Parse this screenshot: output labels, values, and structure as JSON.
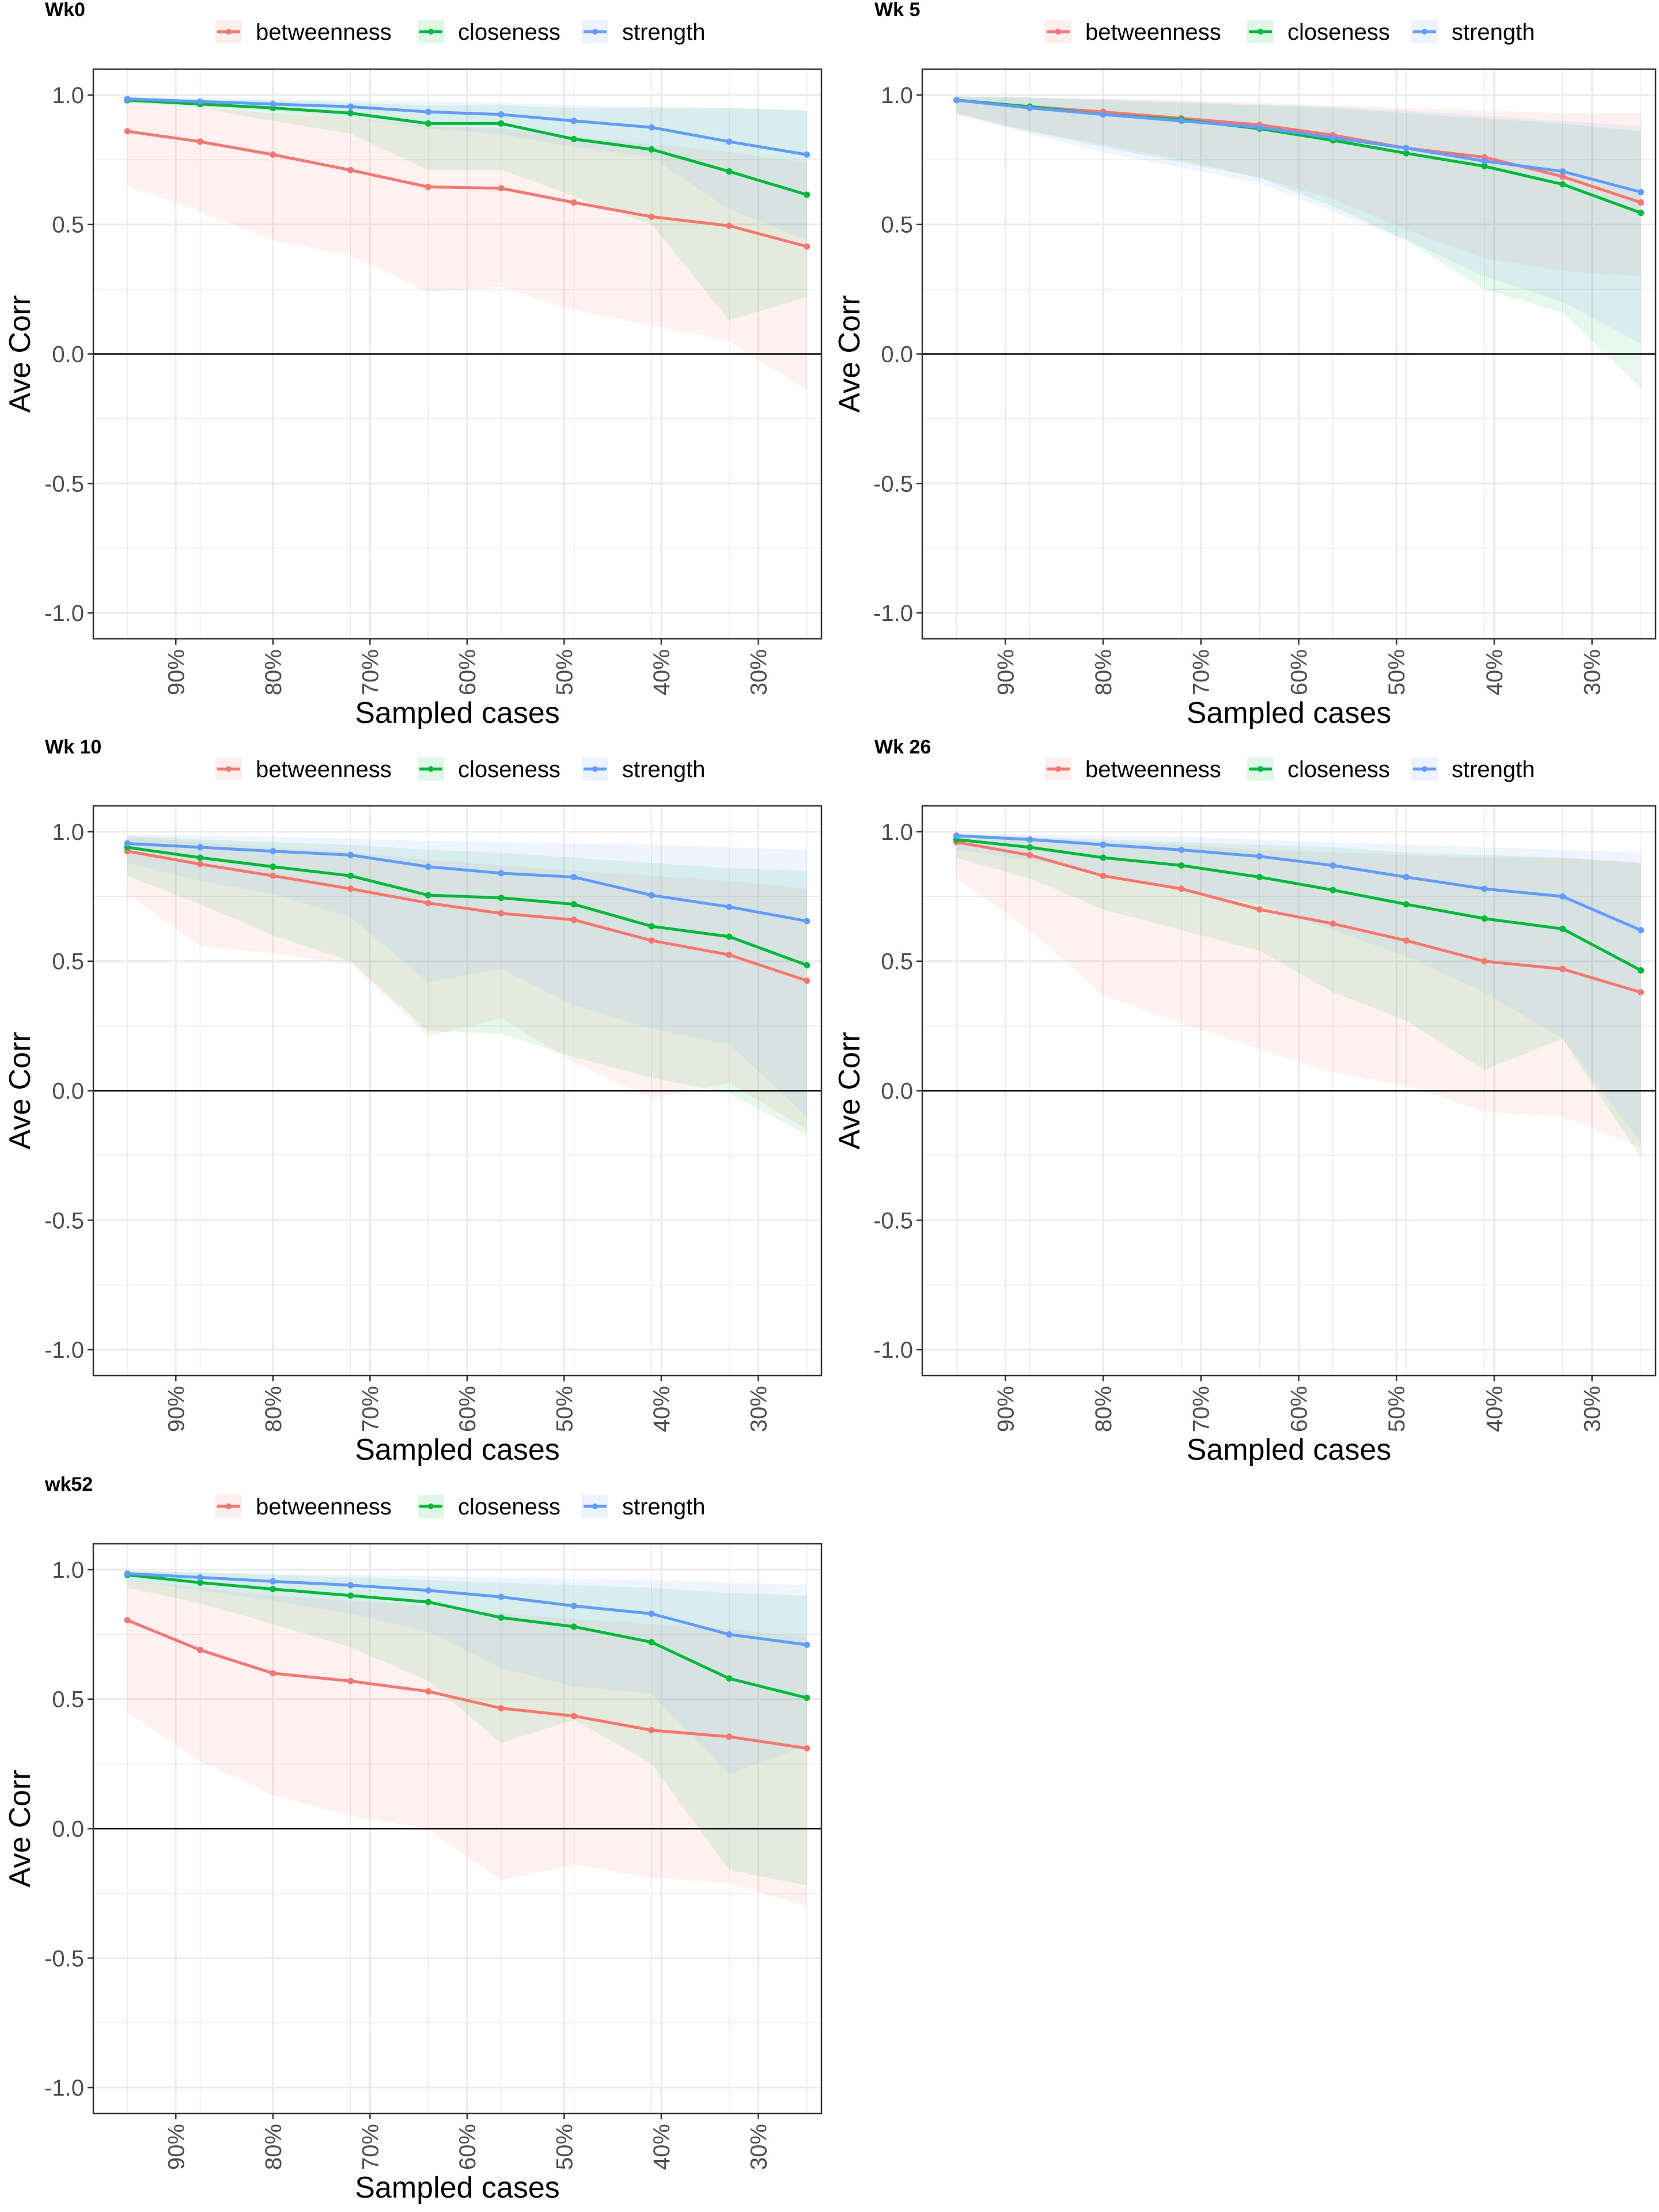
{
  "colors": {
    "betweenness": "#F8766D",
    "closeness": "#00BA38",
    "strength": "#619CFF",
    "grid": "#EBEBEB",
    "panel_border": "#333333",
    "text": "#000000",
    "tick_text": "#4D4D4D"
  },
  "chart_data": [
    {
      "type": "line",
      "title": "Wk0",
      "xlabel": "Sampled cases",
      "ylabel": "Ave Corr",
      "ylim": [
        -1.1,
        1.1
      ],
      "yticks": [
        "1.0",
        "0.5",
        "0.0",
        "-0.5",
        "-1.0"
      ],
      "ytick_values": [
        1.0,
        0.5,
        0.0,
        -0.5,
        -1.0
      ],
      "xticks": [
        "90%",
        "80%",
        "70%",
        "60%",
        "50%",
        "40%",
        "30%"
      ],
      "xtick_values": [
        0.9,
        0.8,
        0.7,
        0.6,
        0.5,
        0.4,
        0.3
      ],
      "xlim": [
        0.985,
        0.235
      ],
      "x": [
        0.95,
        0.875,
        0.8,
        0.72,
        0.64,
        0.565,
        0.49,
        0.41,
        0.33,
        0.25
      ],
      "legend": "top",
      "grid": true,
      "series": [
        {
          "name": "betweenness",
          "values": [
            0.86,
            0.82,
            0.77,
            0.71,
            0.645,
            0.64,
            0.585,
            0.53,
            0.495,
            0.415
          ],
          "lower": [
            0.65,
            0.55,
            0.44,
            0.38,
            0.24,
            0.26,
            0.17,
            0.11,
            0.05,
            -0.14
          ],
          "upper": [
            0.97,
            0.95,
            0.93,
            0.91,
            0.88,
            0.87,
            0.84,
            0.81,
            0.78,
            0.74
          ]
        },
        {
          "name": "closeness",
          "values": [
            0.98,
            0.965,
            0.95,
            0.93,
            0.89,
            0.89,
            0.83,
            0.79,
            0.705,
            0.615
          ],
          "lower": [
            0.97,
            0.95,
            0.9,
            0.85,
            0.71,
            0.71,
            0.61,
            0.5,
            0.13,
            0.22
          ],
          "upper": [
            0.99,
            0.98,
            0.98,
            0.97,
            0.96,
            0.96,
            0.95,
            0.95,
            0.95,
            0.94
          ]
        },
        {
          "name": "strength",
          "values": [
            0.985,
            0.975,
            0.965,
            0.955,
            0.935,
            0.925,
            0.9,
            0.875,
            0.82,
            0.77
          ],
          "lower": [
            0.97,
            0.96,
            0.94,
            0.91,
            0.87,
            0.85,
            0.8,
            0.76,
            0.56,
            0.44
          ],
          "upper": [
            0.995,
            0.99,
            0.985,
            0.98,
            0.975,
            0.97,
            0.96,
            0.955,
            0.95,
            0.94
          ]
        }
      ]
    },
    {
      "type": "line",
      "title": "Wk 5",
      "xlabel": "Sampled cases",
      "ylabel": "Ave Corr",
      "ylim": [
        -1.1,
        1.1
      ],
      "yticks": [
        "1.0",
        "0.5",
        "0.0",
        "-0.5",
        "-1.0"
      ],
      "ytick_values": [
        1.0,
        0.5,
        0.0,
        -0.5,
        -1.0
      ],
      "xticks": [
        "90%",
        "80%",
        "70%",
        "60%",
        "50%",
        "40%",
        "30%"
      ],
      "xtick_values": [
        0.9,
        0.8,
        0.7,
        0.6,
        0.5,
        0.4,
        0.3
      ],
      "xlim": [
        0.985,
        0.235
      ],
      "x": [
        0.95,
        0.875,
        0.8,
        0.72,
        0.64,
        0.565,
        0.49,
        0.41,
        0.33,
        0.25
      ],
      "legend": "top",
      "grid": true,
      "series": [
        {
          "name": "betweenness",
          "values": [
            0.98,
            0.955,
            0.935,
            0.91,
            0.885,
            0.845,
            0.795,
            0.76,
            0.685,
            0.585
          ],
          "lower": [
            0.92,
            0.86,
            0.81,
            0.75,
            0.68,
            0.6,
            0.48,
            0.37,
            0.32,
            0.3
          ],
          "upper": [
            0.995,
            0.99,
            0.985,
            0.98,
            0.97,
            0.96,
            0.95,
            0.94,
            0.93,
            0.93
          ]
        },
        {
          "name": "closeness",
          "values": [
            0.98,
            0.955,
            0.925,
            0.905,
            0.87,
            0.825,
            0.775,
            0.725,
            0.655,
            0.545
          ],
          "lower": [
            0.93,
            0.86,
            0.8,
            0.74,
            0.68,
            0.57,
            0.44,
            0.25,
            0.16,
            -0.13
          ],
          "upper": [
            0.995,
            0.99,
            0.98,
            0.97,
            0.96,
            0.95,
            0.93,
            0.91,
            0.89,
            0.86
          ]
        },
        {
          "name": "strength",
          "values": [
            0.98,
            0.95,
            0.925,
            0.9,
            0.875,
            0.835,
            0.795,
            0.745,
            0.705,
            0.625
          ],
          "lower": [
            0.93,
            0.85,
            0.78,
            0.72,
            0.66,
            0.55,
            0.44,
            0.3,
            0.2,
            0.04
          ],
          "upper": [
            0.995,
            0.99,
            0.985,
            0.975,
            0.965,
            0.955,
            0.94,
            0.92,
            0.9,
            0.88
          ]
        }
      ]
    },
    {
      "type": "line",
      "title": "Wk 10",
      "xlabel": "Sampled cases",
      "ylabel": "Ave Corr",
      "ylim": [
        -1.1,
        1.1
      ],
      "yticks": [
        "1.0",
        "0.5",
        "0.0",
        "-0.5",
        "-1.0"
      ],
      "ytick_values": [
        1.0,
        0.5,
        0.0,
        -0.5,
        -1.0
      ],
      "xticks": [
        "90%",
        "80%",
        "70%",
        "60%",
        "50%",
        "40%",
        "30%"
      ],
      "xtick_values": [
        0.9,
        0.8,
        0.7,
        0.6,
        0.5,
        0.4,
        0.3
      ],
      "xlim": [
        0.985,
        0.235
      ],
      "x": [
        0.95,
        0.875,
        0.8,
        0.72,
        0.64,
        0.565,
        0.49,
        0.41,
        0.33,
        0.25
      ],
      "legend": "top",
      "grid": true,
      "series": [
        {
          "name": "betweenness",
          "values": [
            0.925,
            0.875,
            0.83,
            0.78,
            0.725,
            0.685,
            0.66,
            0.58,
            0.525,
            0.425
          ],
          "lower": [
            0.76,
            0.56,
            0.53,
            0.49,
            0.21,
            0.28,
            0.11,
            -0.03,
            0.03,
            -0.15
          ],
          "upper": [
            0.98,
            0.96,
            0.94,
            0.92,
            0.89,
            0.87,
            0.85,
            0.83,
            0.81,
            0.78
          ]
        },
        {
          "name": "closeness",
          "values": [
            0.94,
            0.9,
            0.865,
            0.83,
            0.755,
            0.745,
            0.72,
            0.635,
            0.595,
            0.485
          ],
          "lower": [
            0.83,
            0.72,
            0.6,
            0.5,
            0.23,
            0.22,
            0.13,
            0.05,
            -0.01,
            -0.17
          ],
          "upper": [
            0.985,
            0.97,
            0.96,
            0.95,
            0.93,
            0.92,
            0.9,
            0.88,
            0.86,
            0.85
          ]
        },
        {
          "name": "strength",
          "values": [
            0.955,
            0.94,
            0.925,
            0.91,
            0.865,
            0.84,
            0.825,
            0.755,
            0.71,
            0.655
          ],
          "lower": [
            0.88,
            0.81,
            0.76,
            0.67,
            0.42,
            0.47,
            0.33,
            0.24,
            0.18,
            -0.1
          ],
          "upper": [
            0.99,
            0.985,
            0.98,
            0.975,
            0.965,
            0.96,
            0.955,
            0.95,
            0.94,
            0.93
          ]
        }
      ]
    },
    {
      "type": "line",
      "title": "Wk 26",
      "xlabel": "Sampled cases",
      "ylabel": "Ave Corr",
      "ylim": [
        -1.1,
        1.1
      ],
      "yticks": [
        "1.0",
        "0.5",
        "0.0",
        "-0.5",
        "-1.0"
      ],
      "ytick_values": [
        1.0,
        0.5,
        0.0,
        -0.5,
        -1.0
      ],
      "xticks": [
        "90%",
        "80%",
        "70%",
        "60%",
        "50%",
        "40%",
        "30%"
      ],
      "xtick_values": [
        0.9,
        0.8,
        0.7,
        0.6,
        0.5,
        0.4,
        0.3
      ],
      "xlim": [
        0.985,
        0.235
      ],
      "x": [
        0.95,
        0.875,
        0.8,
        0.72,
        0.64,
        0.565,
        0.49,
        0.41,
        0.33,
        0.25
      ],
      "legend": "top",
      "grid": true,
      "series": [
        {
          "name": "betweenness",
          "values": [
            0.96,
            0.91,
            0.83,
            0.78,
            0.7,
            0.645,
            0.58,
            0.5,
            0.47,
            0.38
          ],
          "lower": [
            0.82,
            0.62,
            0.37,
            0.26,
            0.16,
            0.07,
            0.02,
            -0.08,
            -0.1,
            -0.22
          ],
          "upper": [
            0.99,
            0.98,
            0.96,
            0.95,
            0.93,
            0.92,
            0.91,
            0.9,
            0.9,
            0.88
          ]
        },
        {
          "name": "closeness",
          "values": [
            0.97,
            0.94,
            0.9,
            0.87,
            0.825,
            0.775,
            0.72,
            0.665,
            0.625,
            0.465
          ],
          "lower": [
            0.9,
            0.82,
            0.7,
            0.62,
            0.54,
            0.38,
            0.27,
            0.08,
            0.2,
            -0.26
          ],
          "upper": [
            0.99,
            0.98,
            0.97,
            0.96,
            0.95,
            0.94,
            0.92,
            0.91,
            0.9,
            0.88
          ]
        },
        {
          "name": "strength",
          "values": [
            0.985,
            0.97,
            0.95,
            0.93,
            0.905,
            0.87,
            0.825,
            0.78,
            0.75,
            0.62
          ],
          "lower": [
            0.93,
            0.89,
            0.84,
            0.78,
            0.72,
            0.62,
            0.52,
            0.38,
            0.2,
            -0.2
          ],
          "upper": [
            0.995,
            0.99,
            0.985,
            0.98,
            0.97,
            0.96,
            0.95,
            0.94,
            0.93,
            0.92
          ]
        }
      ]
    },
    {
      "type": "line",
      "title": "wk52",
      "xlabel": "Sampled cases",
      "ylabel": "Ave Corr",
      "ylim": [
        -1.1,
        1.1
      ],
      "yticks": [
        "1.0",
        "0.5",
        "0.0",
        "-0.5",
        "-1.0"
      ],
      "ytick_values": [
        1.0,
        0.5,
        0.0,
        -0.5,
        -1.0
      ],
      "xticks": [
        "90%",
        "80%",
        "70%",
        "60%",
        "50%",
        "40%",
        "30%"
      ],
      "xtick_values": [
        0.9,
        0.8,
        0.7,
        0.6,
        0.5,
        0.4,
        0.3
      ],
      "xlim": [
        0.985,
        0.235
      ],
      "x": [
        0.95,
        0.875,
        0.8,
        0.72,
        0.64,
        0.565,
        0.49,
        0.41,
        0.33,
        0.25
      ],
      "legend": "top",
      "grid": true,
      "series": [
        {
          "name": "betweenness",
          "values": [
            0.805,
            0.69,
            0.6,
            0.57,
            0.53,
            0.465,
            0.435,
            0.38,
            0.355,
            0.31
          ],
          "lower": [
            0.45,
            0.26,
            0.13,
            0.05,
            0.0,
            -0.2,
            -0.14,
            -0.19,
            -0.21,
            -0.3
          ],
          "upper": [
            0.96,
            0.93,
            0.9,
            0.88,
            0.86,
            0.83,
            0.81,
            0.79,
            0.77,
            0.74
          ]
        },
        {
          "name": "closeness",
          "values": [
            0.98,
            0.95,
            0.925,
            0.9,
            0.875,
            0.815,
            0.78,
            0.72,
            0.58,
            0.505
          ],
          "lower": [
            0.93,
            0.87,
            0.79,
            0.7,
            0.57,
            0.33,
            0.42,
            0.25,
            -0.16,
            -0.22
          ],
          "upper": [
            0.995,
            0.99,
            0.98,
            0.97,
            0.96,
            0.95,
            0.94,
            0.93,
            0.91,
            0.9
          ]
        },
        {
          "name": "strength",
          "values": [
            0.985,
            0.97,
            0.955,
            0.94,
            0.92,
            0.895,
            0.86,
            0.83,
            0.75,
            0.71
          ],
          "lower": [
            0.96,
            0.92,
            0.88,
            0.83,
            0.76,
            0.62,
            0.55,
            0.52,
            0.21,
            0.32
          ],
          "upper": [
            0.995,
            0.99,
            0.985,
            0.98,
            0.975,
            0.97,
            0.965,
            0.96,
            0.95,
            0.94
          ]
        }
      ]
    }
  ]
}
